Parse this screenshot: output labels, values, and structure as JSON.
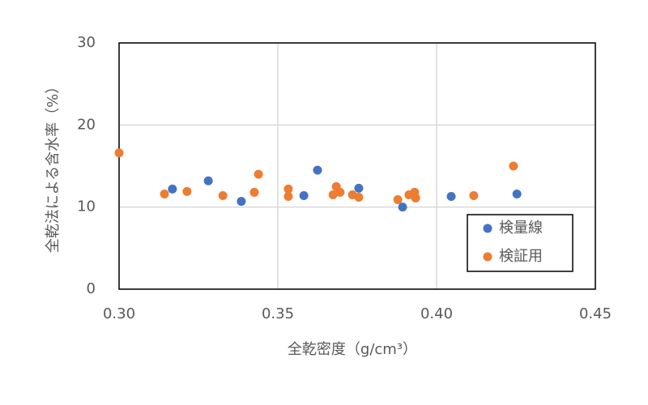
{
  "chart_data": {
    "type": "scatter",
    "x_label": "全乾密度（g/cm³）",
    "y_label": "全乾法による含水率（%）",
    "xlim": [
      0.3,
      0.45
    ],
    "xticks": [
      {
        "value": 0.3,
        "label": "0.30"
      },
      {
        "value": 0.35,
        "label": "0.35"
      },
      {
        "value": 0.4,
        "label": "0.40"
      },
      {
        "value": 0.45,
        "label": "0.45"
      }
    ],
    "ylim": [
      0,
      30
    ],
    "yticks": [
      0,
      10,
      20,
      30
    ],
    "grid": true,
    "legend": "lower-right",
    "series": [
      {
        "name": "検量線",
        "color": "#4472c4",
        "x": [
          0.3168,
          0.3281,
          0.3385,
          0.3582,
          0.3625,
          0.3755,
          0.3893,
          0.4046,
          0.4253
        ],
        "values": [
          12.2,
          13.2,
          10.7,
          11.4,
          14.5,
          12.3,
          10.0,
          11.3,
          11.6
        ]
      },
      {
        "name": "検証用",
        "color": "#ed7d31",
        "x": [
          0.3,
          0.3143,
          0.3214,
          0.3327,
          0.3426,
          0.3439,
          0.3533,
          0.3533,
          0.3674,
          0.3684,
          0.3696,
          0.3735,
          0.3755,
          0.3878,
          0.3913,
          0.3931,
          0.3934,
          0.4117,
          0.4242
        ],
        "values": [
          16.6,
          11.6,
          11.9,
          11.4,
          11.8,
          14.0,
          12.2,
          11.3,
          11.5,
          12.5,
          11.8,
          11.5,
          11.2,
          10.9,
          11.5,
          11.8,
          11.1,
          11.4,
          15.0
        ]
      }
    ]
  }
}
